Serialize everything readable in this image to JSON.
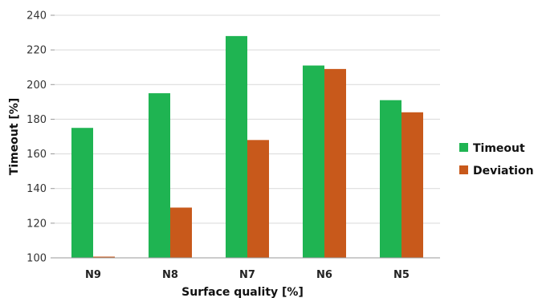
{
  "chart_data": {
    "type": "bar",
    "categories": [
      "N9",
      "N8",
      "N7",
      "N6",
      "N5"
    ],
    "series": [
      {
        "name": "Timeout",
        "color": "#1fb452",
        "values": [
          175,
          195,
          228,
          211,
          191
        ]
      },
      {
        "name": "Deviation",
        "color": "#c8591b",
        "values": [
          100,
          129,
          168,
          209,
          184
        ]
      }
    ],
    "xlabel": "Surface quality [%]",
    "ylabel": "Timeout [%]",
    "ylim": [
      100,
      240
    ],
    "yticks": [
      100,
      120,
      140,
      160,
      180,
      200,
      220,
      240
    ],
    "grid": true,
    "legend": "right"
  }
}
